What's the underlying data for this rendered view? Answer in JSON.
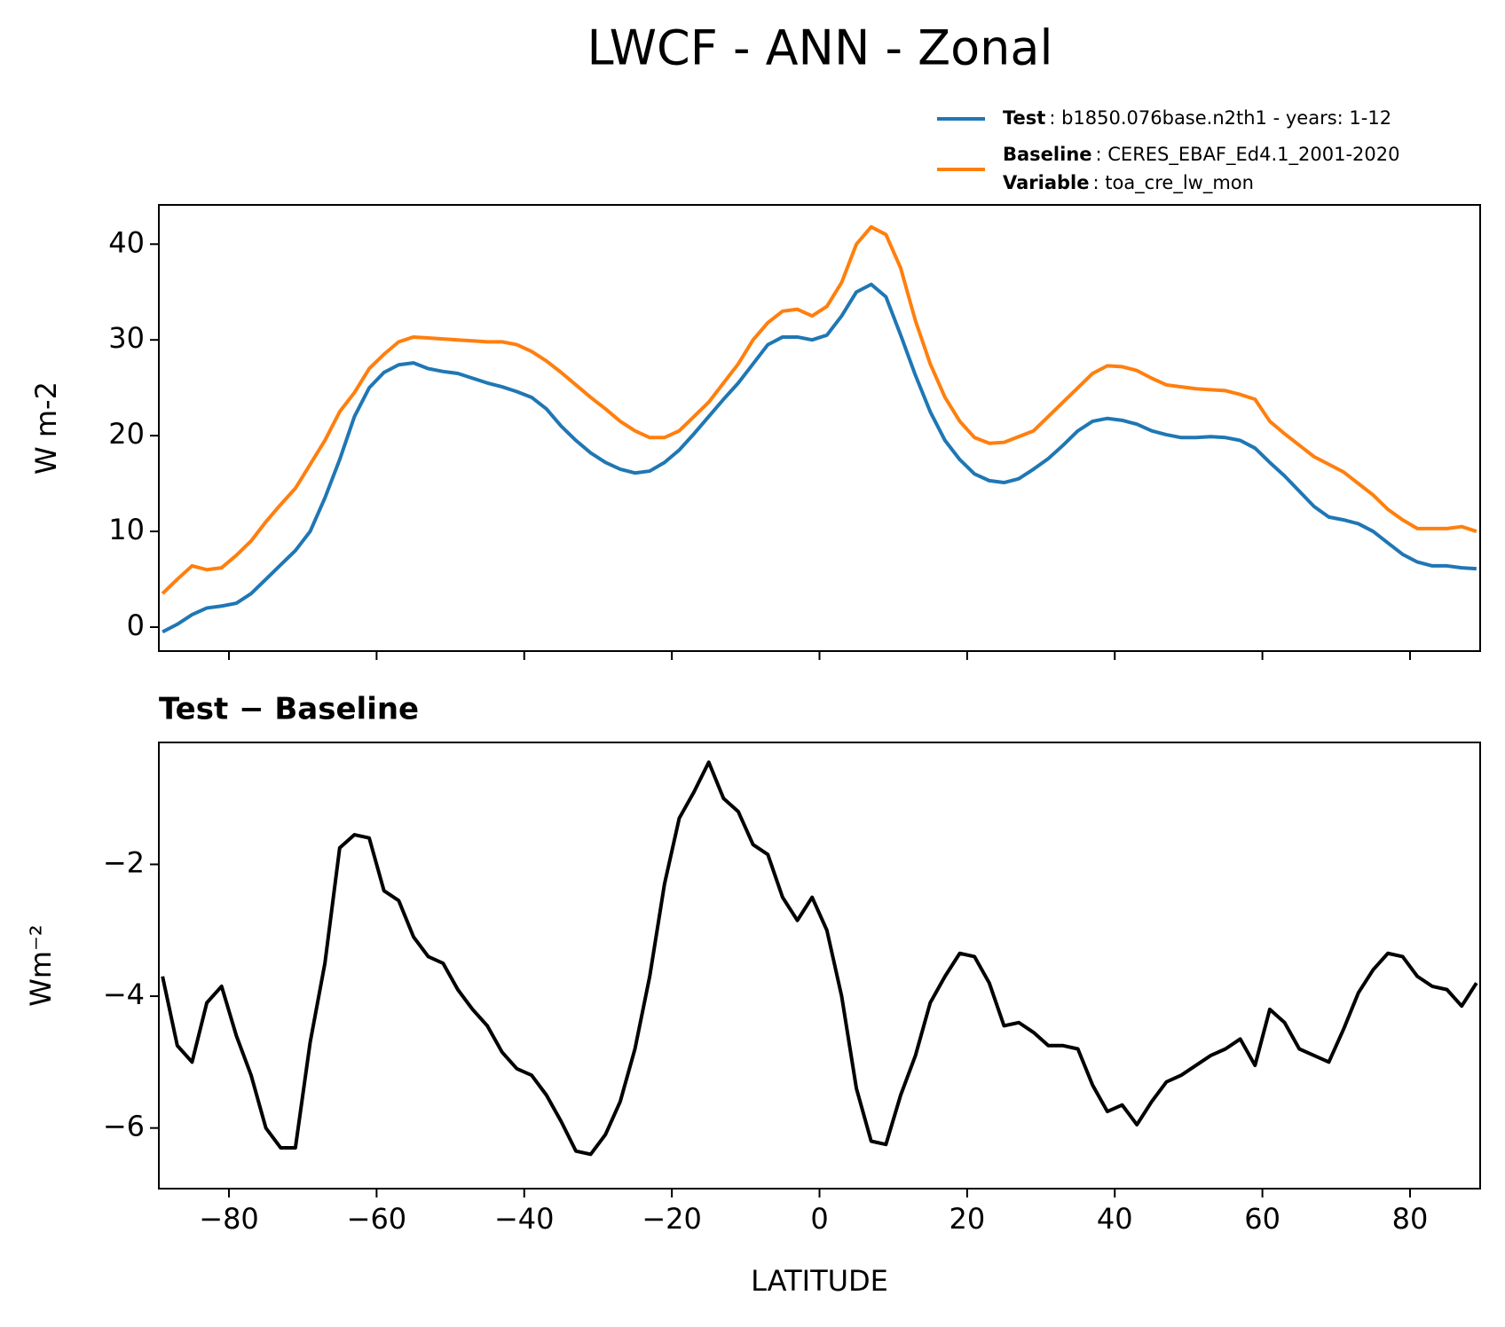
{
  "suptitle": "LWCF - ANN - Zonal",
  "chart_data": [
    {
      "type": "line",
      "ylabel": "W m-2",
      "x": [
        -89,
        -87,
        -85,
        -83,
        -81,
        -79,
        -77,
        -75,
        -73,
        -71,
        -69,
        -67,
        -65,
        -63,
        -61,
        -59,
        -57,
        -55,
        -53,
        -51,
        -49,
        -47,
        -45,
        -43,
        -41,
        -39,
        -37,
        -35,
        -33,
        -31,
        -29,
        -27,
        -25,
        -23,
        -21,
        -19,
        -17,
        -15,
        -13,
        -11,
        -9,
        -7,
        -5,
        -3,
        -1,
        1,
        3,
        5,
        7,
        9,
        11,
        13,
        15,
        17,
        19,
        21,
        23,
        25,
        27,
        29,
        31,
        33,
        35,
        37,
        39,
        41,
        43,
        45,
        47,
        49,
        51,
        53,
        55,
        57,
        59,
        61,
        63,
        65,
        67,
        69,
        71,
        73,
        75,
        77,
        79,
        81,
        83,
        85,
        87,
        89
      ],
      "series": [
        {
          "name": "Test",
          "detail": ": b1850.076base.n2th1 - years: 1-12",
          "color": "#1f77b4",
          "values": [
            -0.5,
            0.3,
            1.3,
            2,
            2.2,
            2.5,
            3.5,
            5,
            6.5,
            8,
            10,
            13.5,
            17.5,
            22,
            25,
            26.6,
            27.4,
            27.6,
            27.0,
            26.7,
            26.5,
            26.0,
            25.5,
            25.1,
            24.6,
            24.0,
            22.8,
            21.0,
            19.5,
            18.2,
            17.2,
            16.5,
            16.1,
            16.3,
            17.2,
            18.5,
            20.2,
            22,
            23.8,
            25.5,
            27.5,
            29.5,
            30.3,
            30.3,
            30.0,
            30.5,
            32.5,
            35,
            35.8,
            34.5,
            30.5,
            26.3,
            22.5,
            19.5,
            17.5,
            16,
            15.3,
            15.1,
            15.5,
            16.5,
            17.6,
            19,
            20.5,
            21.5,
            21.8,
            21.6,
            21.2,
            20.5,
            20.1,
            19.8,
            19.8,
            19.9,
            19.8,
            19.5,
            18.7,
            17.2,
            15.8,
            14.2,
            12.6,
            11.5,
            11.2,
            10.8,
            10.0,
            8.8,
            7.6,
            6.8,
            6.4,
            6.4,
            6.2,
            6.1
          ]
        },
        {
          "name": "Baseline",
          "detail": ": CERES_EBAF_Ed4.1_2001-2020",
          "color": "#ff7f0e",
          "values": [
            3.5,
            5,
            6.4,
            6.0,
            6.2,
            7.5,
            9,
            11,
            12.8,
            14.5,
            17,
            19.5,
            22.5,
            24.5,
            27,
            28.5,
            29.8,
            30.3,
            30.2,
            30.1,
            30.0,
            29.9,
            29.8,
            29.8,
            29.5,
            28.8,
            27.8,
            26.6,
            25.3,
            24.0,
            22.8,
            21.5,
            20.5,
            19.8,
            19.8,
            20.5,
            22,
            23.5,
            25.5,
            27.5,
            30,
            31.8,
            33,
            33.2,
            32.5,
            33.5,
            36,
            40,
            41.8,
            41,
            37.5,
            32,
            27.5,
            24,
            21.5,
            19.8,
            19.2,
            19.3,
            19.9,
            20.5,
            22,
            23.5,
            25,
            26.5,
            27.3,
            27.2,
            26.8,
            26,
            25.3,
            25.1,
            24.9,
            24.8,
            24.7,
            24.3,
            23.8,
            21.5,
            20.2,
            19,
            17.8,
            17,
            16.2,
            15,
            13.8,
            12.3,
            11.2,
            10.3,
            10.3,
            10.3,
            10.5,
            10
          ]
        }
      ],
      "legend_extra": {
        "name": "Variable",
        "detail": ": toa_cre_lw_mon"
      },
      "xlim": [
        -89.5,
        89.5
      ],
      "xticks": [
        -80,
        -60,
        -40,
        -20,
        0,
        20,
        40,
        60,
        80
      ],
      "xtick_labels": false,
      "ylim": [
        -2.5,
        44.1
      ],
      "yticks": [
        0,
        10,
        20,
        30,
        40
      ],
      "legend": "upper right"
    },
    {
      "type": "line",
      "title": "Test − Baseline",
      "xlabel": "LATITUDE",
      "ylabel": "Wm⁻²",
      "x": [
        -89,
        -87,
        -85,
        -83,
        -81,
        -79,
        -77,
        -75,
        -73,
        -71,
        -69,
        -67,
        -65,
        -63,
        -61,
        -59,
        -57,
        -55,
        -53,
        -51,
        -49,
        -47,
        -45,
        -43,
        -41,
        -39,
        -37,
        -35,
        -33,
        -31,
        -29,
        -27,
        -25,
        -23,
        -21,
        -19,
        -17,
        -15,
        -13,
        -11,
        -9,
        -7,
        -5,
        -3,
        -1,
        1,
        3,
        5,
        7,
        9,
        11,
        13,
        15,
        17,
        19,
        21,
        23,
        25,
        27,
        29,
        31,
        33,
        35,
        37,
        39,
        41,
        43,
        45,
        47,
        49,
        51,
        53,
        55,
        57,
        59,
        61,
        63,
        65,
        67,
        69,
        71,
        73,
        75,
        77,
        79,
        81,
        83,
        85,
        87,
        89
      ],
      "series": [
        {
          "color": "#000000",
          "values": [
            -3.7,
            -4.75,
            -5.0,
            -4.1,
            -3.85,
            -4.6,
            -5.2,
            -6.0,
            -6.3,
            -6.3,
            -4.7,
            -3.5,
            -1.75,
            -1.55,
            -1.6,
            -2.4,
            -2.55,
            -3.1,
            -3.4,
            -3.5,
            -3.9,
            -4.2,
            -4.45,
            -4.85,
            -5.1,
            -5.2,
            -5.5,
            -5.9,
            -6.35,
            -6.4,
            -6.1,
            -5.6,
            -4.8,
            -3.7,
            -2.3,
            -1.3,
            -0.9,
            -0.45,
            -1.0,
            -1.2,
            -1.7,
            -1.85,
            -2.5,
            -2.85,
            -2.5,
            -3.0,
            -4.0,
            -5.4,
            -6.2,
            -6.25,
            -5.5,
            -4.9,
            -4.1,
            -3.7,
            -3.35,
            -3.4,
            -3.8,
            -4.45,
            -4.4,
            -4.55,
            -4.75,
            -4.75,
            -4.8,
            -5.35,
            -5.75,
            -5.65,
            -5.95,
            -5.6,
            -5.3,
            -5.2,
            -5.05,
            -4.9,
            -4.8,
            -4.65,
            -5.05,
            -4.2,
            -4.4,
            -4.8,
            -4.9,
            -5.0,
            -4.5,
            -3.95,
            -3.6,
            -3.35,
            -3.4,
            -3.7,
            -3.85,
            -3.9,
            -4.15,
            -3.8
          ]
        }
      ],
      "xlim": [
        -89.5,
        89.5
      ],
      "xticks": [
        {
          "value": -80,
          "label": "−80"
        },
        {
          "value": -60,
          "label": "−60"
        },
        {
          "value": -40,
          "label": "−40"
        },
        {
          "value": -20,
          "label": "−20"
        },
        0,
        20,
        40,
        60,
        80
      ],
      "ylim": [
        -6.92,
        -0.15
      ],
      "yticks": [
        {
          "value": -2,
          "label": "−2"
        },
        {
          "value": -4,
          "label": "−4"
        },
        {
          "value": -6,
          "label": "−6"
        }
      ]
    }
  ]
}
